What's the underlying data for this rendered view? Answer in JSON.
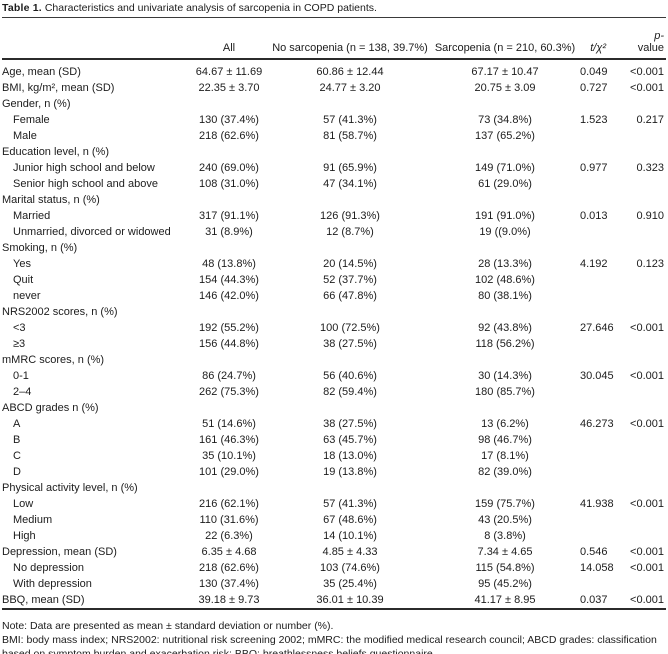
{
  "page": {
    "title_label": "Table 1.",
    "title_text": "Characteristics and univariate analysis of sarcopenia in COPD patients."
  },
  "table": {
    "header": {
      "all": "All",
      "no_sarcopenia": "No sarcopenia (n = 138, 39.7%)",
      "sarcopenia": "Sarcopenia (n = 210, 60.3%)",
      "t_chi2": "t/χ²",
      "p_line1": "p-",
      "p_line2": "value"
    },
    "rows": [
      {
        "label": "Age, mean (SD)",
        "indent": false,
        "all": "64.67 ± 11.69",
        "no_sarcopenia": "60.86 ± 12.44",
        "sarcopenia": "67.17 ± 10.47",
        "t": "0.049",
        "p": "<0.001"
      },
      {
        "label": "BMI, kg/m², mean (SD)",
        "indent": false,
        "all": "22.35 ± 3.70",
        "no_sarcopenia": "24.77 ± 3.20",
        "sarcopenia": "20.75 ± 3.09",
        "t": "0.727",
        "p": "<0.001"
      },
      {
        "label": "Gender, n (%)",
        "indent": false,
        "all": "",
        "no_sarcopenia": "",
        "sarcopenia": "",
        "t": "",
        "p": ""
      },
      {
        "label": "Female",
        "indent": true,
        "all": "130 (37.4%)",
        "no_sarcopenia": "57 (41.3%)",
        "sarcopenia": "73 (34.8%)",
        "t": "1.523",
        "p": "0.217"
      },
      {
        "label": "Male",
        "indent": true,
        "all": "218 (62.6%)",
        "no_sarcopenia": "81 (58.7%)",
        "sarcopenia": "137 (65.2%)",
        "t": "",
        "p": ""
      },
      {
        "label": "Education level, n (%)",
        "indent": false,
        "all": "",
        "no_sarcopenia": "",
        "sarcopenia": "",
        "t": "",
        "p": ""
      },
      {
        "label": "Junior high school and below",
        "indent": true,
        "all": "240 (69.0%)",
        "no_sarcopenia": "91 (65.9%)",
        "sarcopenia": "149 (71.0%)",
        "t": "0.977",
        "p": "0.323"
      },
      {
        "label": "Senior high school and above",
        "indent": true,
        "all": "108 (31.0%)",
        "no_sarcopenia": "47 (34.1%)",
        "sarcopenia": "61 (29.0%)",
        "t": "",
        "p": ""
      },
      {
        "label": "Marital status, n (%)",
        "indent": false,
        "all": "",
        "no_sarcopenia": "",
        "sarcopenia": "",
        "t": "",
        "p": ""
      },
      {
        "label": "Married",
        "indent": true,
        "all": "317 (91.1%)",
        "no_sarcopenia": "126 (91.3%)",
        "sarcopenia": "191 (91.0%)",
        "t": "0.013",
        "p": "0.910"
      },
      {
        "label": "Unmarried, divorced or widowed",
        "indent": true,
        "all": "31 (8.9%)",
        "no_sarcopenia": "12 (8.7%)",
        "sarcopenia": "19 ((9.0%)",
        "t": "",
        "p": ""
      },
      {
        "label": "Smoking, n (%)",
        "indent": false,
        "all": "",
        "no_sarcopenia": "",
        "sarcopenia": "",
        "t": "",
        "p": ""
      },
      {
        "label": "Yes",
        "indent": true,
        "all": "48 (13.8%)",
        "no_sarcopenia": "20 (14.5%)",
        "sarcopenia": "28 (13.3%)",
        "t": "4.192",
        "p": "0.123"
      },
      {
        "label": "Quit",
        "indent": true,
        "all": "154 (44.3%)",
        "no_sarcopenia": "52 (37.7%)",
        "sarcopenia": "102 (48.6%)",
        "t": "",
        "p": ""
      },
      {
        "label": "never",
        "indent": true,
        "all": "146 (42.0%)",
        "no_sarcopenia": "66 (47.8%)",
        "sarcopenia": "80 (38.1%)",
        "t": "",
        "p": ""
      },
      {
        "label": "NRS2002 scores, n (%)",
        "indent": false,
        "all": "",
        "no_sarcopenia": "",
        "sarcopenia": "",
        "t": "",
        "p": ""
      },
      {
        "label": "<3",
        "indent": true,
        "all": "192 (55.2%)",
        "no_sarcopenia": "100 (72.5%)",
        "sarcopenia": "92 (43.8%)",
        "t": "27.646",
        "p": "<0.001"
      },
      {
        "label": "≥3",
        "indent": true,
        "all": "156 (44.8%)",
        "no_sarcopenia": "38 (27.5%)",
        "sarcopenia": "118 (56.2%)",
        "t": "",
        "p": ""
      },
      {
        "label": "mMRC scores, n (%)",
        "indent": false,
        "all": "",
        "no_sarcopenia": "",
        "sarcopenia": "",
        "t": "",
        "p": ""
      },
      {
        "label": "0-1",
        "indent": true,
        "all": "86 (24.7%)",
        "no_sarcopenia": "56 (40.6%)",
        "sarcopenia": "30 (14.3%)",
        "t": "30.045",
        "p": "<0.001"
      },
      {
        "label": "2–4",
        "indent": true,
        "all": "262 (75.3%)",
        "no_sarcopenia": "82 (59.4%)",
        "sarcopenia": "180 (85.7%)",
        "t": "",
        "p": ""
      },
      {
        "label": "ABCD grades n (%)",
        "indent": false,
        "all": "",
        "no_sarcopenia": "",
        "sarcopenia": "",
        "t": "",
        "p": ""
      },
      {
        "label": "A",
        "indent": true,
        "all": "51 (14.6%)",
        "no_sarcopenia": "38 (27.5%)",
        "sarcopenia": "13 (6.2%)",
        "t": "46.273",
        "p": "<0.001"
      },
      {
        "label": "B",
        "indent": true,
        "all": "161 (46.3%)",
        "no_sarcopenia": "63 (45.7%)",
        "sarcopenia": "98 (46.7%)",
        "t": "",
        "p": ""
      },
      {
        "label": "C",
        "indent": true,
        "all": "35 (10.1%)",
        "no_sarcopenia": "18 (13.0%)",
        "sarcopenia": "17 (8.1%)",
        "t": "",
        "p": ""
      },
      {
        "label": "D",
        "indent": true,
        "all": "101 (29.0%)",
        "no_sarcopenia": "19 (13.8%)",
        "sarcopenia": "82 (39.0%)",
        "t": "",
        "p": ""
      },
      {
        "label": "Physical activity level, n (%)",
        "indent": false,
        "all": "",
        "no_sarcopenia": "",
        "sarcopenia": "",
        "t": "",
        "p": ""
      },
      {
        "label": "Low",
        "indent": true,
        "all": "216 (62.1%)",
        "no_sarcopenia": "57 (41.3%)",
        "sarcopenia": "159 (75.7%)",
        "t": "41.938",
        "p": "<0.001"
      },
      {
        "label": "Medium",
        "indent": true,
        "all": "110 (31.6%)",
        "no_sarcopenia": "67 (48.6%)",
        "sarcopenia": "43 (20.5%)",
        "t": "",
        "p": ""
      },
      {
        "label": "High",
        "indent": true,
        "all": "22 (6.3%)",
        "no_sarcopenia": "14 (10.1%)",
        "sarcopenia": "8 (3.8%)",
        "t": "",
        "p": ""
      },
      {
        "label": "Depression, mean (SD)",
        "indent": false,
        "all": "6.35 ± 4.68",
        "no_sarcopenia": "4.85 ± 4.33",
        "sarcopenia": "7.34 ± 4.65",
        "t": "0.546",
        "p": "<0.001"
      },
      {
        "label": "No depression",
        "indent": true,
        "all": "218 (62.6%)",
        "no_sarcopenia": "103 (74.6%)",
        "sarcopenia": "115 (54.8%)",
        "t": "14.058",
        "p": "<0.001"
      },
      {
        "label": "With depression",
        "indent": true,
        "all": "130 (37.4%)",
        "no_sarcopenia": "35 (25.4%)",
        "sarcopenia": "95 (45.2%)",
        "t": "",
        "p": ""
      },
      {
        "label": "BBQ, mean (SD)",
        "indent": false,
        "all": "39.18 ± 9.73",
        "no_sarcopenia": "36.01 ± 10.39",
        "sarcopenia": "41.17 ± 8.95",
        "t": "0.037",
        "p": "<0.001"
      }
    ]
  },
  "footnotes": {
    "note": "Note: Data are presented as mean ± standard deviation or number (%).",
    "abbreviations": "BMI: body mass index; NRS2002: nutritional risk screening 2002; mMRC: the modified medical research council; ABCD grades: classification based on symptom burden and exacerbation risk; BBQ: breathlessness beliefs questionnaire."
  }
}
